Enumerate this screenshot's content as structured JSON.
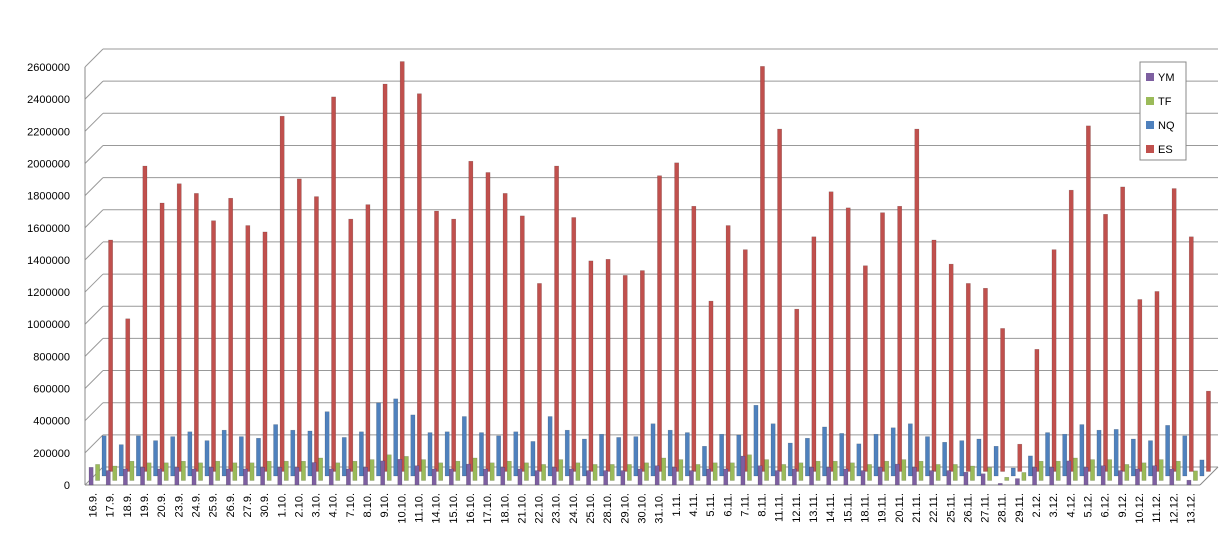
{
  "chart_data": {
    "type": "bar",
    "categories": [
      "16.9.",
      "17.9.",
      "18.9.",
      "19.9.",
      "20.9.",
      "23.9.",
      "24.9.",
      "25.9.",
      "26.9.",
      "27.9.",
      "30.9.",
      "1.10.",
      "2.10.",
      "3.10.",
      "4.10.",
      "7.10.",
      "8.10.",
      "9.10.",
      "10.10.",
      "11.10.",
      "14.10.",
      "15.10.",
      "16.10.",
      "17.10.",
      "18.10.",
      "21.10.",
      "22.10.",
      "23.10.",
      "24.10.",
      "25.10.",
      "28.10.",
      "29.10.",
      "30.10.",
      "31.10.",
      "1.11.",
      "4.11.",
      "5.11.",
      "6.11.",
      "7.11.",
      "8.11.",
      "11.11.",
      "12.11.",
      "13.11.",
      "14.11.",
      "15.11.",
      "18.11.",
      "19.11.",
      "20.11.",
      "21.11.",
      "22.11.",
      "25.11.",
      "26.11.",
      "27.11.",
      "28.11.",
      "29.11.",
      "2.12.",
      "3.12.",
      "4.12.",
      "5.12.",
      "6.12.",
      "9.12.",
      "10.12.",
      "11.12.",
      "12.12.",
      "13.12."
    ],
    "series": [
      {
        "name": "YM",
        "color": "#7d5fa0",
        "values": [
          110000,
          90000,
          100000,
          110000,
          100000,
          110000,
          100000,
          110000,
          100000,
          100000,
          110000,
          110000,
          110000,
          140000,
          100000,
          100000,
          110000,
          150000,
          160000,
          120000,
          100000,
          100000,
          130000,
          100000,
          110000,
          100000,
          90000,
          110000,
          100000,
          90000,
          90000,
          90000,
          100000,
          120000,
          110000,
          90000,
          100000,
          100000,
          180000,
          120000,
          90000,
          100000,
          110000,
          110000,
          100000,
          90000,
          110000,
          130000,
          110000,
          90000,
          90000,
          80000,
          70000,
          10000,
          40000,
          110000,
          110000,
          150000,
          110000,
          120000,
          90000,
          100000,
          120000,
          100000,
          30000
        ]
      },
      {
        "name": "TF",
        "color": "#9bbb59",
        "values": [
          100000,
          90000,
          120000,
          110000,
          110000,
          120000,
          110000,
          120000,
          110000,
          110000,
          120000,
          120000,
          120000,
          140000,
          110000,
          120000,
          130000,
          160000,
          150000,
          130000,
          110000,
          120000,
          140000,
          110000,
          120000,
          110000,
          100000,
          130000,
          110000,
          100000,
          100000,
          100000,
          110000,
          140000,
          130000,
          100000,
          110000,
          110000,
          160000,
          130000,
          100000,
          110000,
          120000,
          120000,
          110000,
          100000,
          120000,
          130000,
          120000,
          100000,
          100000,
          90000,
          80000,
          20000,
          50000,
          120000,
          120000,
          140000,
          130000,
          130000,
          100000,
          110000,
          130000,
          120000,
          60000
        ]
      },
      {
        "name": "NQ",
        "color": "#4f81bd",
        "values": [
          250000,
          195000,
          250000,
          220000,
          245000,
          275000,
          220000,
          285000,
          245000,
          235000,
          320000,
          285000,
          280000,
          400000,
          240000,
          275000,
          455000,
          480000,
          380000,
          270000,
          275000,
          370000,
          270000,
          250000,
          275000,
          215000,
          370000,
          285000,
          230000,
          260000,
          240000,
          245000,
          325000,
          285000,
          270000,
          185000,
          260000,
          255000,
          440000,
          325000,
          205000,
          235000,
          305000,
          265000,
          200000,
          260000,
          300000,
          325000,
          245000,
          210000,
          220000,
          230000,
          185000,
          50000,
          125000,
          270000,
          260000,
          320000,
          285000,
          290000,
          230000,
          220000,
          315000,
          250000,
          100000
        ]
      },
      {
        "name": "ES",
        "color": "#c0504d",
        "values": [
          1440000,
          950000,
          1900000,
          1670000,
          1790000,
          1730000,
          1560000,
          1700000,
          1530000,
          1490000,
          2210000,
          1820000,
          1710000,
          2330000,
          1570000,
          1660000,
          2410000,
          2550000,
          2350000,
          1620000,
          1570000,
          1930000,
          1860000,
          1730000,
          1590000,
          1170000,
          1900000,
          1580000,
          1310000,
          1320000,
          1220000,
          1250000,
          1840000,
          1920000,
          1650000,
          1060000,
          1530000,
          1380000,
          2520000,
          2130000,
          1010000,
          1460000,
          1740000,
          1640000,
          1280000,
          1610000,
          1650000,
          2130000,
          1440000,
          1290000,
          1170000,
          1140000,
          890000,
          170000,
          760000,
          1380000,
          1750000,
          2150000,
          1600000,
          1770000,
          1070000,
          1120000,
          1760000,
          1460000,
          500000
        ]
      }
    ],
    "ylim": [
      0,
      2600000
    ],
    "yticks": [
      0,
      200000,
      400000,
      600000,
      800000,
      1000000,
      1200000,
      1400000,
      1600000,
      1800000,
      2000000,
      2200000,
      2400000,
      2600000
    ],
    "grid": true,
    "legend": "top-right"
  }
}
